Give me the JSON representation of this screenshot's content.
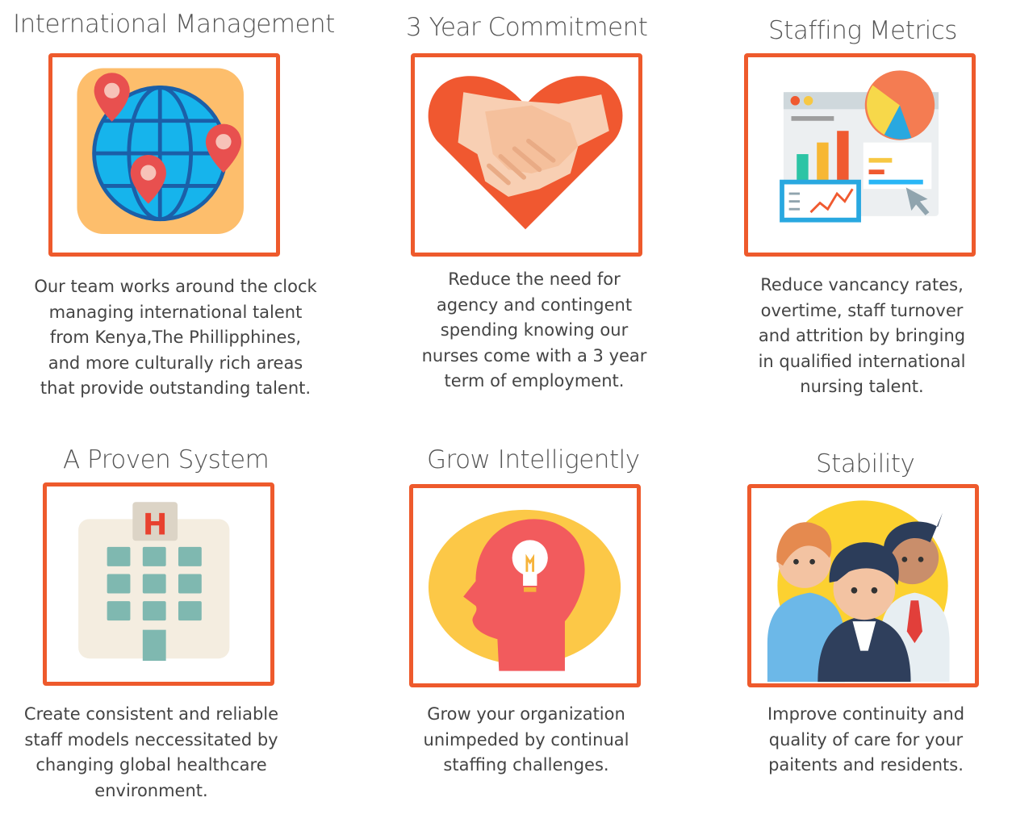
{
  "accent_color": "#ee5a2c",
  "features": [
    {
      "title": "International Management",
      "icon": "globe-map-pins-icon",
      "description": "Our team works around the clock\nmanaging international talent\nfrom Kenya,The Phillipphines,\nand more culturally rich areas\nthat provide outstanding talent."
    },
    {
      "title": "3 Year Commitment",
      "icon": "heart-handshake-icon",
      "description": "Reduce the need for\nagency and contingent\nspending knowing our\nnurses come with a 3 year\nterm of employment."
    },
    {
      "title": "Staffing Metrics",
      "icon": "analytics-dashboard-icon",
      "description": "Reduce vancancy rates,\novertime, staff turnover\nand attrition by bringing\nin qualified international\nnursing talent."
    },
    {
      "title": "A Proven System",
      "icon": "hospital-building-icon",
      "description": "Create consistent and reliable\nstaff models neccessitated by\nchanging global healthcare\nenvironment."
    },
    {
      "title": "Grow Intelligently",
      "icon": "head-lightbulb-icon",
      "description": "Grow your organization\nunimpeded by continual\nstaffing challenges."
    },
    {
      "title": "Stability",
      "icon": "team-people-icon",
      "description": "Improve continuity and\nquality of care for your\npaitents and residents."
    }
  ],
  "hospital_sign_letter": "H"
}
